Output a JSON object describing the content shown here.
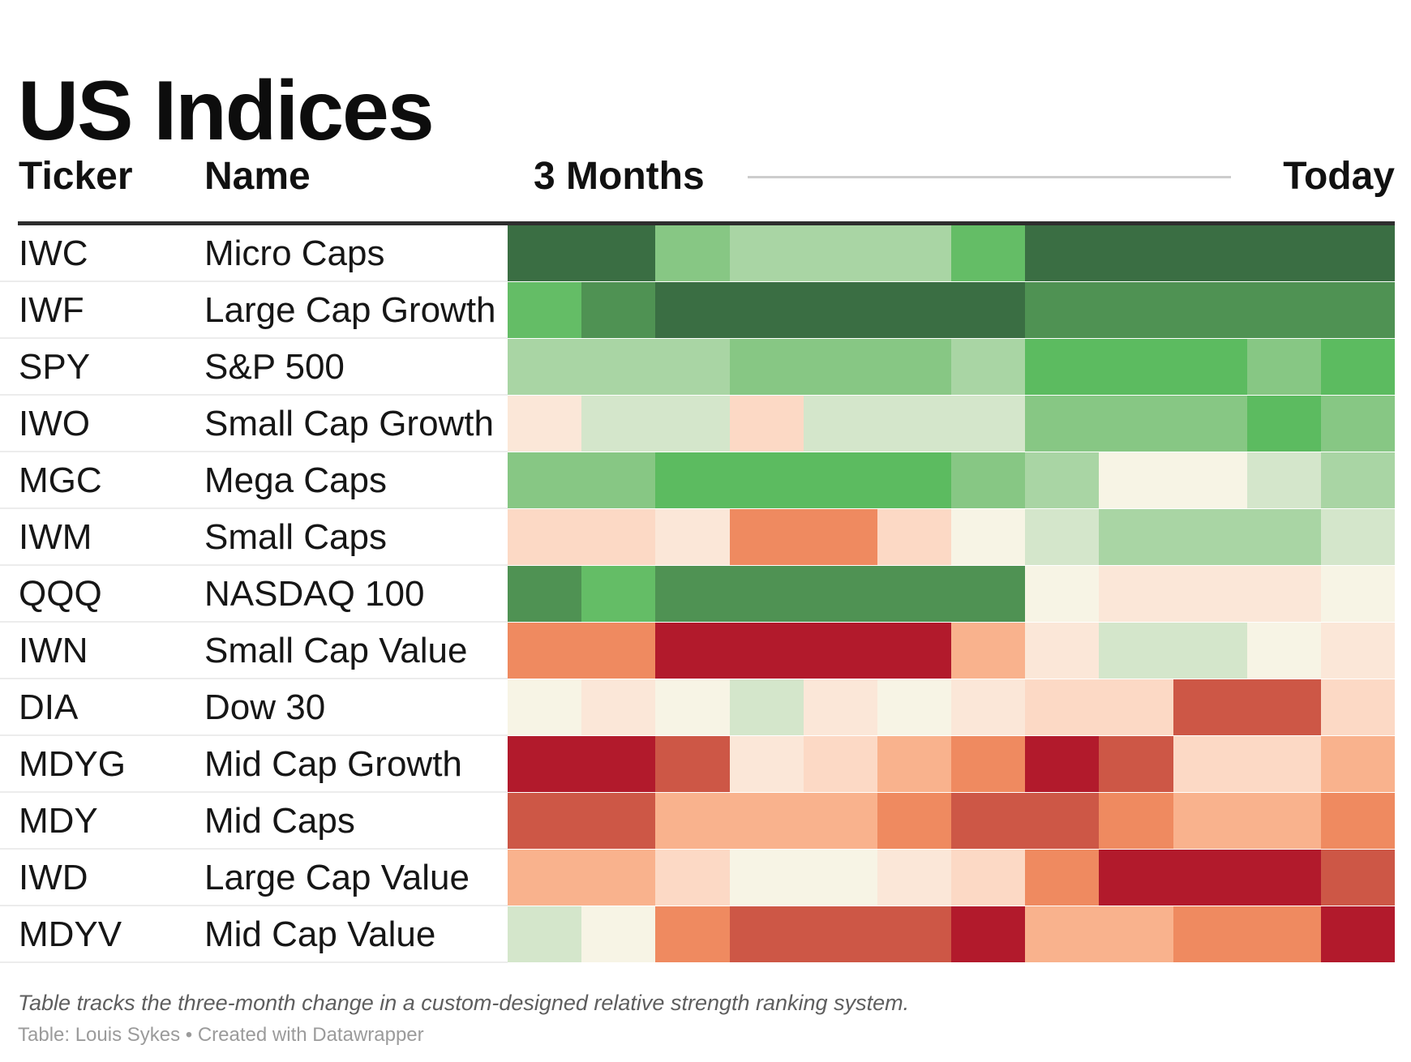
{
  "title": "US Indices",
  "columns": {
    "ticker": "Ticker",
    "name": "Name",
    "start": "3 Months",
    "end": "Today"
  },
  "footer": {
    "note": "Table tracks the three-month change in a custom-designed relative strength ranking system.",
    "credit": "Table: Louis Sykes • Created with Datawrapper"
  },
  "palette": {
    "dg": "#3a6e43",
    "se": "#4f9253",
    "bg": "#64bd66",
    "st": "#5cbb60",
    "md": "#87c784",
    "lt": "#a9d5a4",
    "pg": "#d4e6cb",
    "cr": "#f7f4e5",
    "pp": "#fbe7d8",
    "lp": "#fcd9c5",
    "ls": "#f9b28d",
    "sa": "#ef8a60",
    "br": "#cd5746",
    "dr": "#b21a2c"
  },
  "rows": [
    {
      "ticker": "IWC",
      "name": "Micro Caps",
      "cells": [
        "dg",
        "dg",
        "md",
        "lt",
        "lt",
        "lt",
        "bg",
        "dg",
        "dg",
        "dg",
        "dg",
        "dg"
      ]
    },
    {
      "ticker": "IWF",
      "name": "Large Cap Growth",
      "cells": [
        "bg",
        "se",
        "dg",
        "dg",
        "dg",
        "dg",
        "dg",
        "se",
        "se",
        "se",
        "se",
        "se"
      ]
    },
    {
      "ticker": "SPY",
      "name": "S&P 500",
      "cells": [
        "lt",
        "lt",
        "lt",
        "md",
        "md",
        "md",
        "lt",
        "st",
        "st",
        "st",
        "md",
        "st"
      ]
    },
    {
      "ticker": "IWO",
      "name": "Small Cap Growth",
      "cells": [
        "pp",
        "pg",
        "pg",
        "lp",
        "pg",
        "pg",
        "pg",
        "md",
        "md",
        "md",
        "st",
        "md"
      ]
    },
    {
      "ticker": "MGC",
      "name": "Mega Caps",
      "cells": [
        "md",
        "md",
        "st",
        "st",
        "st",
        "st",
        "md",
        "lt",
        "cr",
        "cr",
        "pg",
        "lt"
      ]
    },
    {
      "ticker": "IWM",
      "name": "Small Caps",
      "cells": [
        "lp",
        "lp",
        "pp",
        "sa",
        "sa",
        "lp",
        "cr",
        "pg",
        "lt",
        "lt",
        "lt",
        "pg"
      ]
    },
    {
      "ticker": "QQQ",
      "name": "NASDAQ 100",
      "cells": [
        "se",
        "bg",
        "se",
        "se",
        "se",
        "se",
        "se",
        "cr",
        "pp",
        "pp",
        "pp",
        "cr"
      ]
    },
    {
      "ticker": "IWN",
      "name": "Small Cap Value",
      "cells": [
        "sa",
        "sa",
        "dr",
        "dr",
        "dr",
        "dr",
        "ls",
        "pp",
        "pg",
        "pg",
        "cr",
        "pp"
      ]
    },
    {
      "ticker": "DIA",
      "name": "Dow 30",
      "cells": [
        "cr",
        "pp",
        "cr",
        "pg",
        "pp",
        "cr",
        "pp",
        "lp",
        "lp",
        "br",
        "br",
        "lp"
      ]
    },
    {
      "ticker": "MDYG",
      "name": "Mid Cap Growth",
      "cells": [
        "dr",
        "dr",
        "br",
        "pp",
        "lp",
        "ls",
        "sa",
        "dr",
        "br",
        "lp",
        "lp",
        "ls"
      ]
    },
    {
      "ticker": "MDY",
      "name": "Mid Caps",
      "cells": [
        "br",
        "br",
        "ls",
        "ls",
        "ls",
        "sa",
        "br",
        "br",
        "sa",
        "ls",
        "ls",
        "sa"
      ]
    },
    {
      "ticker": "IWD",
      "name": "Large Cap Value",
      "cells": [
        "ls",
        "ls",
        "lp",
        "cr",
        "cr",
        "pp",
        "lp",
        "sa",
        "dr",
        "dr",
        "dr",
        "br"
      ]
    },
    {
      "ticker": "MDYV",
      "name": "Mid Cap Value",
      "cells": [
        "pg",
        "cr",
        "sa",
        "br",
        "br",
        "br",
        "dr",
        "ls",
        "ls",
        "sa",
        "sa",
        "dr"
      ]
    }
  ],
  "chart_data": {
    "type": "heatmap",
    "title": "US Indices",
    "xlabel_start": "3 Months",
    "xlabel_end": "Today",
    "n_time_columns": 12,
    "legend_position": "none",
    "grid": "off",
    "color_scale": "diverging dark-red -> cream -> dark-green",
    "color_levels_low_to_high": [
      "dr",
      "br",
      "sa",
      "ls",
      "lp",
      "pp",
      "cr",
      "pg",
      "lt",
      "md",
      "st",
      "bg",
      "se",
      "dg"
    ],
    "palette_hex": {
      "dg": "#3a6e43",
      "se": "#4f9253",
      "bg": "#64bd66",
      "st": "#5cbb60",
      "md": "#87c784",
      "lt": "#a9d5a4",
      "pg": "#d4e6cb",
      "cr": "#f7f4e5",
      "pp": "#fbe7d8",
      "lp": "#fcd9c5",
      "ls": "#f9b28d",
      "sa": "#ef8a60",
      "br": "#cd5746",
      "dr": "#b21a2c"
    },
    "row_tickers": [
      "IWC",
      "IWF",
      "SPY",
      "IWO",
      "MGC",
      "IWM",
      "QQQ",
      "IWN",
      "DIA",
      "MDYG",
      "MDY",
      "IWD",
      "MDYV"
    ],
    "row_names": [
      "Micro Caps",
      "Large Cap Growth",
      "S&P 500",
      "Small Cap Growth",
      "Mega Caps",
      "Small Caps",
      "NASDAQ 100",
      "Small Cap Value",
      "Dow 30",
      "Mid Cap Growth",
      "Mid Caps",
      "Large Cap Value",
      "Mid Cap Value"
    ],
    "cell_color_keys": [
      [
        "dg",
        "dg",
        "md",
        "lt",
        "lt",
        "lt",
        "bg",
        "dg",
        "dg",
        "dg",
        "dg",
        "dg"
      ],
      [
        "bg",
        "se",
        "dg",
        "dg",
        "dg",
        "dg",
        "dg",
        "se",
        "se",
        "se",
        "se",
        "se"
      ],
      [
        "lt",
        "lt",
        "lt",
        "md",
        "md",
        "md",
        "lt",
        "st",
        "st",
        "st",
        "md",
        "st"
      ],
      [
        "pp",
        "pg",
        "pg",
        "lp",
        "pg",
        "pg",
        "pg",
        "md",
        "md",
        "md",
        "st",
        "md"
      ],
      [
        "md",
        "md",
        "st",
        "st",
        "st",
        "st",
        "md",
        "lt",
        "cr",
        "cr",
        "pg",
        "lt"
      ],
      [
        "lp",
        "lp",
        "pp",
        "sa",
        "sa",
        "lp",
        "cr",
        "pg",
        "lt",
        "lt",
        "lt",
        "pg"
      ],
      [
        "se",
        "bg",
        "se",
        "se",
        "se",
        "se",
        "se",
        "cr",
        "pp",
        "pp",
        "pp",
        "cr"
      ],
      [
        "sa",
        "sa",
        "dr",
        "dr",
        "dr",
        "dr",
        "ls",
        "pp",
        "pg",
        "pg",
        "cr",
        "pp"
      ],
      [
        "cr",
        "pp",
        "cr",
        "pg",
        "pp",
        "cr",
        "pp",
        "lp",
        "lp",
        "br",
        "br",
        "lp"
      ],
      [
        "dr",
        "dr",
        "br",
        "pp",
        "lp",
        "ls",
        "sa",
        "dr",
        "br",
        "lp",
        "lp",
        "ls"
      ],
      [
        "br",
        "br",
        "ls",
        "ls",
        "ls",
        "sa",
        "br",
        "br",
        "sa",
        "ls",
        "ls",
        "sa"
      ],
      [
        "ls",
        "ls",
        "lp",
        "cr",
        "cr",
        "pp",
        "lp",
        "sa",
        "dr",
        "dr",
        "dr",
        "br"
      ],
      [
        "pg",
        "cr",
        "sa",
        "br",
        "br",
        "br",
        "dr",
        "ls",
        "ls",
        "sa",
        "sa",
        "dr"
      ]
    ],
    "note": "Table tracks the three-month change in a custom-designed relative strength ranking system.",
    "credit": "Table: Louis Sykes • Created with Datawrapper"
  }
}
